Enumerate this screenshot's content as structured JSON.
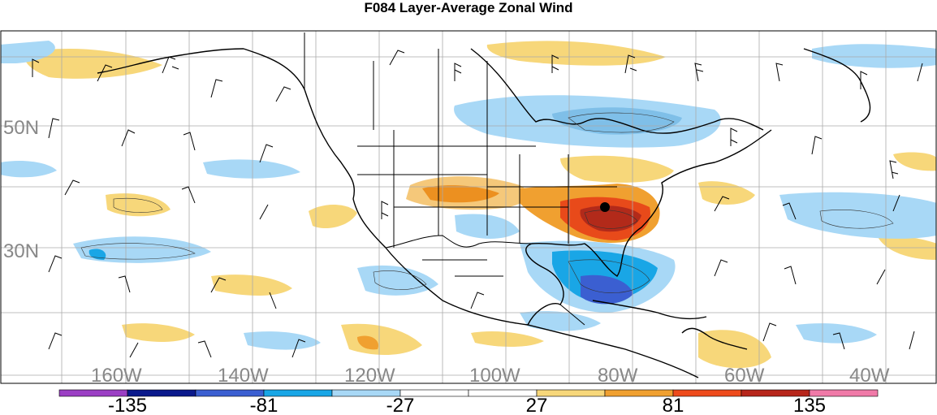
{
  "title": "F084 Layer-Average Zonal Wind",
  "map": {
    "lat_labels": [
      "50N",
      "30N"
    ],
    "lon_labels": [
      "160W",
      "140W",
      "120W",
      "100W",
      "80W",
      "60W",
      "40W"
    ],
    "positive_color": "#f2a13a",
    "negative_color": "#7fbfe8"
  },
  "colorbar": {
    "colors": [
      "#9b3fc4",
      "#0b1a8c",
      "#3b5fd1",
      "#19a6e6",
      "#a8d8f6",
      "#ffffff",
      "#ffffff",
      "#f7d77a",
      "#f0a030",
      "#ee4b1c",
      "#b7261b",
      "#f07aa8"
    ],
    "labels": [
      "-135",
      "-81",
      "-27",
      "27",
      "81",
      "135"
    ]
  }
}
